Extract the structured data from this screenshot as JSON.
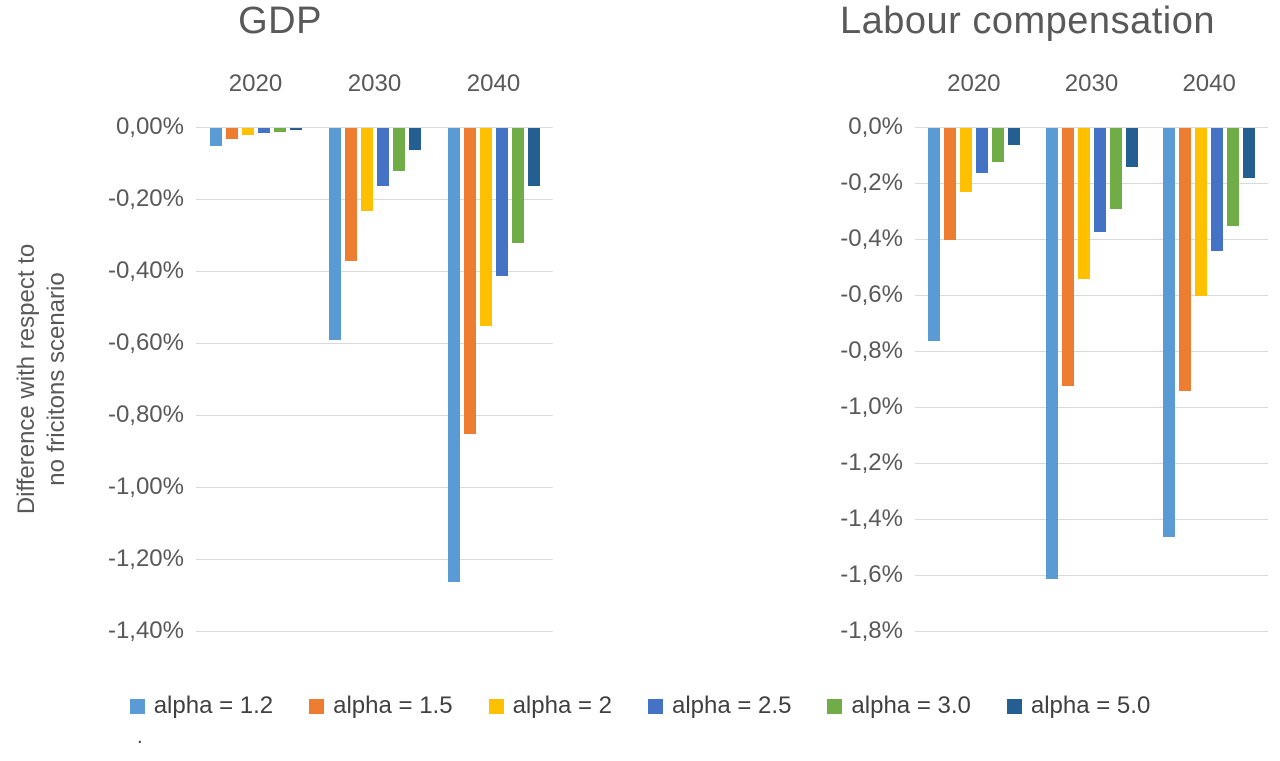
{
  "figure": {
    "footnote": ".",
    "colors": {
      "grid": "#d9d9d9",
      "axis_text": "#595959",
      "legend_text": "#404040",
      "background": "#ffffff"
    },
    "legend": {
      "position": "bottom",
      "items": [
        {
          "label": "alpha = 1.2",
          "color": "#5B9BD5"
        },
        {
          "label": "alpha = 1.5",
          "color": "#ED7D31"
        },
        {
          "label": "alpha = 2",
          "color": "#FFC000"
        },
        {
          "label": "alpha = 2.5",
          "color": "#4472C4"
        },
        {
          "label": "alpha = 3.0",
          "color": "#70AD47"
        },
        {
          "label": "alpha = 5.0",
          "color": "#255E91"
        }
      ]
    }
  },
  "chart_data": [
    {
      "type": "bar",
      "title": "GDP",
      "ylabel": "Difference with respect to no fricitons scenario",
      "ylabel_lines": [
        "Difference with respect to",
        "no fricitons scenario"
      ],
      "categories": [
        "2020",
        "2030",
        "2040"
      ],
      "unit": "percent",
      "grid": true,
      "ylim": [
        0,
        -1.4
      ],
      "ytick_step": 0.2,
      "ytick_labels": [
        "0,00%",
        "-0,20%",
        "-0,40%",
        "-0,60%",
        "-0,80%",
        "-1,00%",
        "-1,20%",
        "-1,40%"
      ],
      "series": [
        {
          "name": "alpha = 1.2",
          "color": "#5B9BD5",
          "values": [
            -0.05,
            -0.59,
            -1.26
          ]
        },
        {
          "name": "alpha = 1.5",
          "color": "#ED7D31",
          "values": [
            -0.03,
            -0.37,
            -0.85
          ]
        },
        {
          "name": "alpha = 2",
          "color": "#FFC000",
          "values": [
            -0.02,
            -0.23,
            -0.55
          ]
        },
        {
          "name": "alpha = 2.5",
          "color": "#4472C4",
          "values": [
            -0.015,
            -0.16,
            -0.41
          ]
        },
        {
          "name": "alpha = 3.0",
          "color": "#70AD47",
          "values": [
            -0.012,
            -0.12,
            -0.32
          ]
        },
        {
          "name": "alpha = 5.0",
          "color": "#255E91",
          "values": [
            -0.005,
            -0.06,
            -0.16
          ]
        }
      ]
    },
    {
      "type": "bar",
      "title": "Labour compensation",
      "ylabel": "",
      "ylabel_lines": [],
      "categories": [
        "2020",
        "2030",
        "2040"
      ],
      "unit": "percent",
      "grid": true,
      "ylim": [
        0,
        -1.8
      ],
      "ytick_step": 0.2,
      "ytick_labels": [
        "0,0%",
        "-0,2%",
        "-0,4%",
        "-0,6%",
        "-0,8%",
        "-1,0%",
        "-1,2%",
        "-1,4%",
        "-1,6%",
        "-1,8%"
      ],
      "series": [
        {
          "name": "alpha = 1.2",
          "color": "#5B9BD5",
          "values": [
            -0.76,
            -1.61,
            -1.46
          ]
        },
        {
          "name": "alpha = 1.5",
          "color": "#ED7D31",
          "values": [
            -0.4,
            -0.92,
            -0.94
          ]
        },
        {
          "name": "alpha = 2",
          "color": "#FFC000",
          "values": [
            -0.23,
            -0.54,
            -0.6
          ]
        },
        {
          "name": "alpha = 2.5",
          "color": "#4472C4",
          "values": [
            -0.16,
            -0.37,
            -0.44
          ]
        },
        {
          "name": "alpha = 3.0",
          "color": "#70AD47",
          "values": [
            -0.12,
            -0.29,
            -0.35
          ]
        },
        {
          "name": "alpha = 5.0",
          "color": "#255E91",
          "values": [
            -0.06,
            -0.14,
            -0.18
          ]
        }
      ]
    }
  ]
}
